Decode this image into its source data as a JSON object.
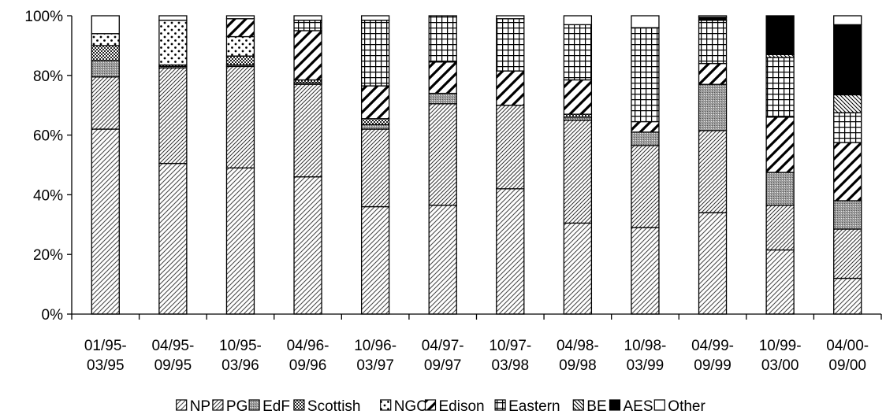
{
  "chart_data": {
    "type": "bar",
    "stacked": true,
    "percent": true,
    "title": "",
    "xlabel": "",
    "ylabel": "",
    "ylim": [
      0,
      100
    ],
    "y_ticks": [
      "0%",
      "20%",
      "40%",
      "60%",
      "80%",
      "100%"
    ],
    "y_tick_values": [
      0,
      20,
      40,
      60,
      80,
      100
    ],
    "grid": false,
    "legend_position": "bottom",
    "categories": [
      [
        "01/95-",
        "03/95"
      ],
      [
        "04/95-",
        "09/95"
      ],
      [
        "10/95-",
        "03/96"
      ],
      [
        "04/96-",
        "09/96"
      ],
      [
        "10/96-",
        "03/97"
      ],
      [
        "04/97-",
        "09/97"
      ],
      [
        "10/97-",
        "03/98"
      ],
      [
        "04/98-",
        "09/98"
      ],
      [
        "10/98-",
        "03/99"
      ],
      [
        "04/99-",
        "09/99"
      ],
      [
        "10/99-",
        "03/00"
      ],
      [
        "04/00-",
        "09/00"
      ]
    ],
    "series": [
      {
        "name": "NP",
        "pattern": "diag-thin",
        "values": [
          62.0,
          50.5,
          49.0,
          46.0,
          36.0,
          36.5,
          42.0,
          30.5,
          29.0,
          34.0,
          21.5,
          12.0
        ]
      },
      {
        "name": "PG",
        "pattern": "diag-fwd",
        "values": [
          17.5,
          32.0,
          34.0,
          31.0,
          26.0,
          34.0,
          28.0,
          34.5,
          27.5,
          27.5,
          15.0,
          16.5
        ]
      },
      {
        "name": "EdF",
        "pattern": "dense-gray",
        "values": [
          5.5,
          0.5,
          0.5,
          0.5,
          1.5,
          3.5,
          0.0,
          1.0,
          4.5,
          15.5,
          11.0,
          9.5
        ]
      },
      {
        "name": "Scottish",
        "pattern": "check",
        "values": [
          5.0,
          0.5,
          3.0,
          1.0,
          2.0,
          0.0,
          0.0,
          1.0,
          0.0,
          0.0,
          0.0,
          0.0
        ]
      },
      {
        "name": "NGC",
        "pattern": "dots",
        "values": [
          4.0,
          15.0,
          6.5,
          0.0,
          0.0,
          0.0,
          0.0,
          0.0,
          0.0,
          0.0,
          0.0,
          0.0
        ]
      },
      {
        "name": "Edison",
        "pattern": "diag-bold",
        "values": [
          0.0,
          0.0,
          6.0,
          16.5,
          11.0,
          10.5,
          11.5,
          11.5,
          3.5,
          7.0,
          18.5,
          19.5
        ]
      },
      {
        "name": "Eastern",
        "pattern": "grid",
        "values": [
          0.0,
          0.0,
          0.0,
          3.5,
          22.0,
          15.5,
          17.5,
          18.5,
          31.5,
          14.5,
          20.0,
          10.0
        ]
      },
      {
        "name": "BE",
        "pattern": "diag-bk",
        "values": [
          0.0,
          0.0,
          0.0,
          0.0,
          0.0,
          0.0,
          0.0,
          0.0,
          0.0,
          0.0,
          1.0,
          6.0
        ]
      },
      {
        "name": "AES",
        "pattern": "solid",
        "values": [
          0.0,
          0.0,
          0.0,
          0.0,
          0.0,
          0.0,
          0.0,
          0.0,
          0.0,
          1.0,
          13.0,
          23.5
        ]
      },
      {
        "name": "Other",
        "pattern": "white",
        "values": [
          6.0,
          1.5,
          1.0,
          1.5,
          1.5,
          0.0,
          1.0,
          3.0,
          4.0,
          0.5,
          0.0,
          3.0
        ]
      }
    ]
  }
}
